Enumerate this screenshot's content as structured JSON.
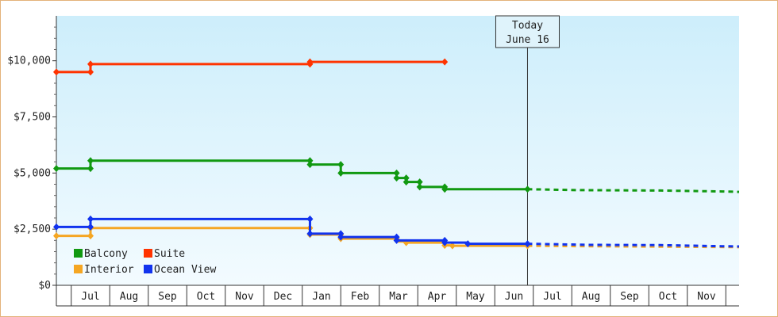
{
  "chart_data": {
    "type": "line",
    "step": true,
    "title": "",
    "xlabel": "",
    "ylabel": "",
    "ylim": [
      0,
      12000
    ],
    "y_ticks": [
      {
        "value": 0,
        "label": "$0"
      },
      {
        "value": 2500,
        "label": "$2,500"
      },
      {
        "value": 5000,
        "label": "$5,000"
      },
      {
        "value": 7500,
        "label": "$7,500"
      },
      {
        "value": 10000,
        "label": "$10,000"
      }
    ],
    "x_ticks": [
      "Jul",
      "Aug",
      "Sep",
      "Oct",
      "Nov",
      "Dec",
      "Jan",
      "Feb",
      "Mar",
      "Apr",
      "May",
      "Jun",
      "Jul",
      "Aug",
      "Sep",
      "Oct",
      "Nov"
    ],
    "today": {
      "line1": "Today",
      "line2": "June 16",
      "x": 11.35
    },
    "grid": false,
    "legend_position": "bottom-left",
    "series": [
      {
        "name": "Balcony",
        "color": "#119911",
        "points": [
          [
            -0.9,
            5200
          ],
          [
            0,
            5200
          ],
          [
            0,
            5550
          ],
          [
            5.7,
            5550
          ],
          [
            5.7,
            5380
          ],
          [
            6.5,
            5380
          ],
          [
            6.5,
            5000
          ],
          [
            7.95,
            5000
          ],
          [
            7.95,
            4780
          ],
          [
            8.2,
            4780
          ],
          [
            8.2,
            4600
          ],
          [
            8.55,
            4600
          ],
          [
            8.55,
            4380
          ],
          [
            9.2,
            4380
          ],
          [
            9.2,
            4280
          ],
          [
            11.35,
            4280
          ]
        ],
        "markers": [
          [
            -0.9,
            5200
          ],
          [
            0,
            5200
          ],
          [
            0,
            5550
          ],
          [
            5.7,
            5550
          ],
          [
            5.7,
            5380
          ],
          [
            6.5,
            5380
          ],
          [
            6.5,
            5000
          ],
          [
            7.95,
            5000
          ],
          [
            7.95,
            4780
          ],
          [
            8.2,
            4780
          ],
          [
            8.2,
            4600
          ],
          [
            8.55,
            4600
          ],
          [
            8.55,
            4380
          ],
          [
            9.2,
            4380
          ],
          [
            9.2,
            4280
          ],
          [
            11.35,
            4280
          ]
        ],
        "forecast": [
          [
            11.35,
            4280
          ],
          [
            12.6,
            4240
          ],
          [
            14.8,
            4220
          ],
          [
            16.4,
            4180
          ],
          [
            17.15,
            4160
          ]
        ]
      },
      {
        "name": "Suite",
        "color": "#ff3300",
        "points": [
          [
            -0.9,
            9500
          ],
          [
            0,
            9500
          ],
          [
            0,
            9850
          ],
          [
            5.7,
            9850
          ],
          [
            5.7,
            9950
          ],
          [
            9.2,
            9950
          ]
        ],
        "markers": [
          [
            -0.9,
            9500
          ],
          [
            0,
            9500
          ],
          [
            0,
            9850
          ],
          [
            5.7,
            9850
          ],
          [
            5.7,
            9950
          ],
          [
            9.2,
            9950
          ]
        ]
      },
      {
        "name": "Interior",
        "color": "#f5a623",
        "points": [
          [
            -0.9,
            2200
          ],
          [
            0,
            2200
          ],
          [
            0,
            2550
          ],
          [
            5.7,
            2550
          ],
          [
            5.7,
            2260
          ],
          [
            6.5,
            2260
          ],
          [
            6.5,
            2080
          ],
          [
            7.95,
            2080
          ],
          [
            7.95,
            1950
          ],
          [
            8.2,
            1950
          ],
          [
            8.2,
            1900
          ],
          [
            9.2,
            1900
          ],
          [
            9.2,
            1780
          ],
          [
            9.4,
            1780
          ],
          [
            9.4,
            1760
          ],
          [
            11.35,
            1760
          ]
        ],
        "markers": [
          [
            -0.9,
            2200
          ],
          [
            0,
            2200
          ],
          [
            0,
            2550
          ],
          [
            5.7,
            2550
          ],
          [
            5.7,
            2260
          ],
          [
            6.5,
            2260
          ],
          [
            6.5,
            2080
          ],
          [
            7.95,
            2080
          ],
          [
            8.2,
            1900
          ],
          [
            9.2,
            1780
          ],
          [
            9.4,
            1760
          ],
          [
            11.35,
            1760
          ]
        ],
        "forecast": [
          [
            11.35,
            1760
          ],
          [
            13.0,
            1740
          ],
          [
            15.0,
            1720
          ],
          [
            17.15,
            1700
          ]
        ]
      },
      {
        "name": "Ocean View",
        "color": "#1133ee",
        "points": [
          [
            -0.9,
            2600
          ],
          [
            0,
            2600
          ],
          [
            0,
            2950
          ],
          [
            5.7,
            2950
          ],
          [
            5.7,
            2300
          ],
          [
            6.5,
            2300
          ],
          [
            6.5,
            2150
          ],
          [
            7.95,
            2150
          ],
          [
            7.95,
            2000
          ],
          [
            9.2,
            2000
          ],
          [
            9.2,
            1900
          ],
          [
            9.8,
            1900
          ],
          [
            9.8,
            1850
          ],
          [
            11.35,
            1850
          ]
        ],
        "markers": [
          [
            -0.9,
            2600
          ],
          [
            0,
            2600
          ],
          [
            0,
            2950
          ],
          [
            5.7,
            2950
          ],
          [
            5.7,
            2300
          ],
          [
            6.5,
            2300
          ],
          [
            6.5,
            2150
          ],
          [
            7.95,
            2150
          ],
          [
            7.95,
            2000
          ],
          [
            9.2,
            2000
          ],
          [
            9.2,
            1900
          ],
          [
            9.8,
            1850
          ],
          [
            11.35,
            1850
          ]
        ],
        "forecast": [
          [
            11.35,
            1850
          ],
          [
            13.0,
            1800
          ],
          [
            14.8,
            1790
          ],
          [
            16.4,
            1740
          ],
          [
            17.15,
            1730
          ]
        ]
      }
    ]
  }
}
